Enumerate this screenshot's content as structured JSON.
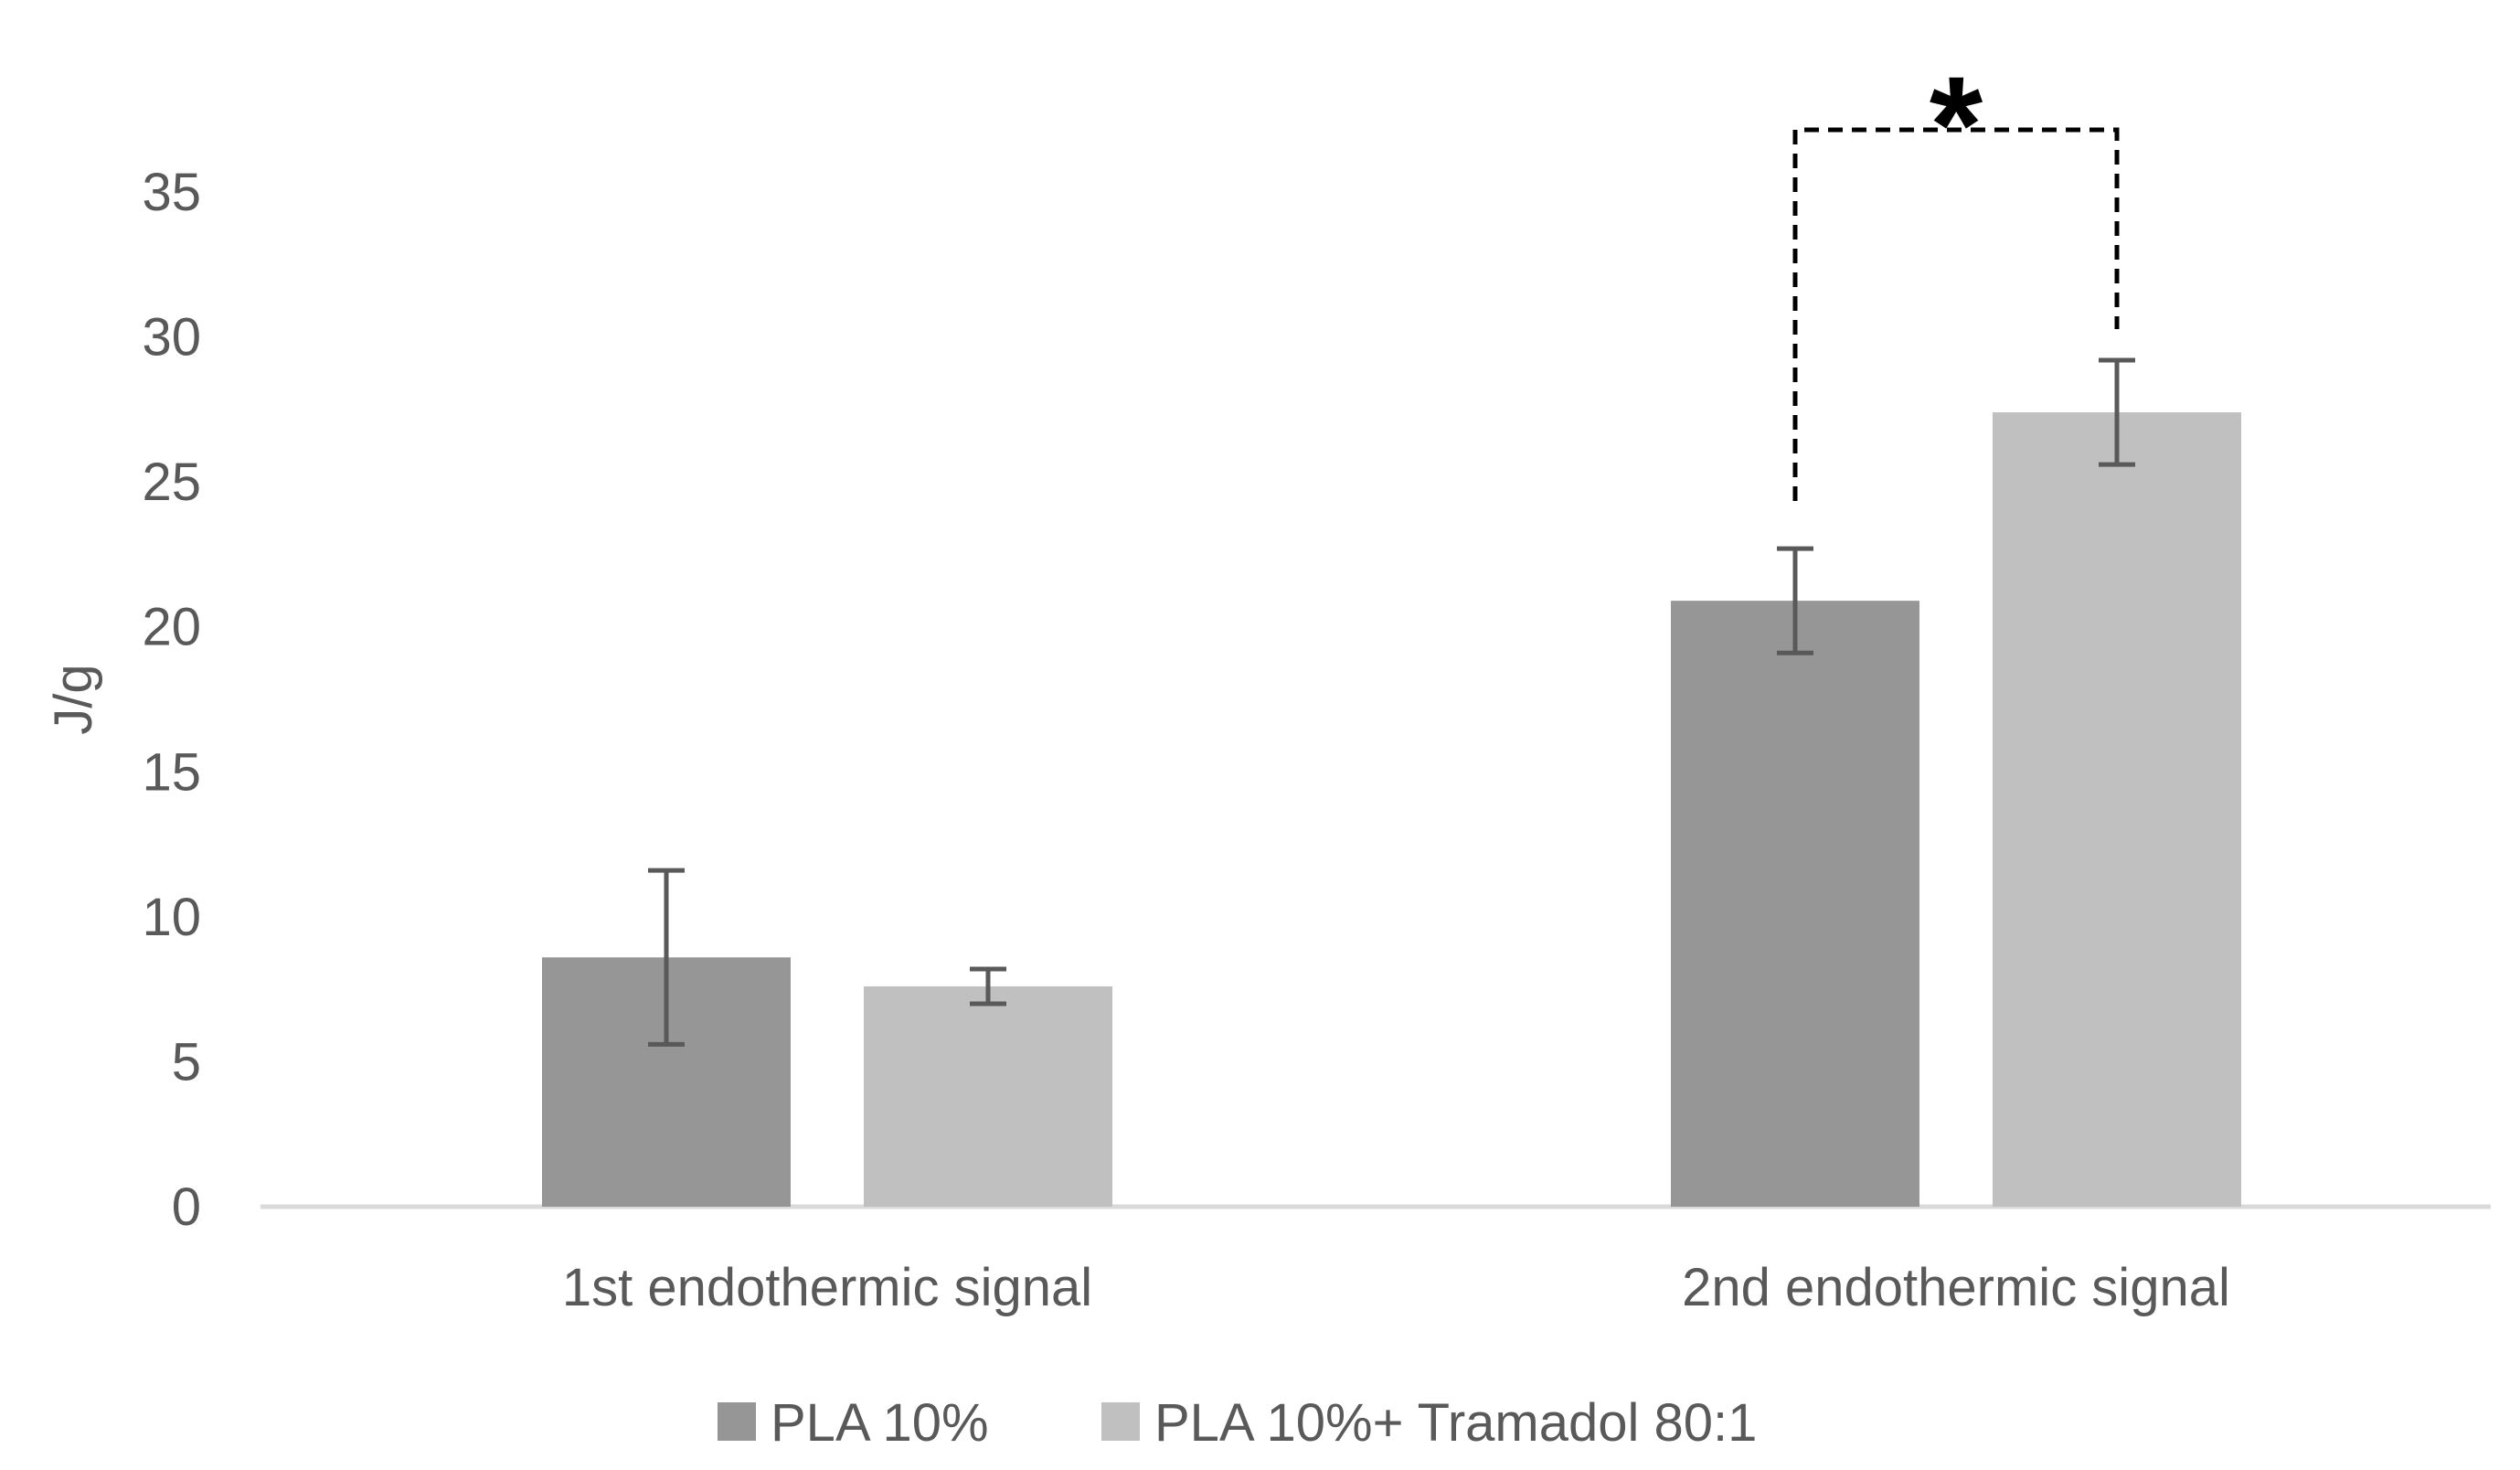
{
  "chart_data": {
    "type": "bar",
    "categories": [
      "1st endothermic signal",
      "2nd endothermic signal"
    ],
    "series": [
      {
        "name": "PLA 10%",
        "values": [
          8.6,
          20.9
        ],
        "errors": [
          3.0,
          1.8
        ],
        "color": "#969696"
      },
      {
        "name": "PLA 10%+ Tramadol 80:1",
        "values": [
          7.6,
          27.4
        ],
        "errors": [
          0.6,
          1.8
        ],
        "color": "#c0c0c0"
      }
    ],
    "ylabel": "J/g",
    "ylim": [
      0,
      35
    ],
    "yticks": [
      0,
      5,
      10,
      15,
      20,
      25,
      30,
      35
    ],
    "grid": false,
    "legend": "bottom",
    "annotation": {
      "text": "*",
      "between_category": "2nd endothermic signal"
    }
  }
}
